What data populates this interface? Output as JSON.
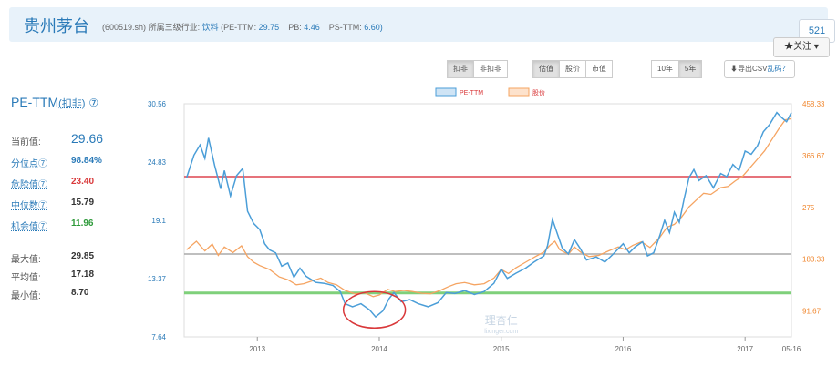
{
  "header": {
    "title": "贵州茅台",
    "code": "(600519.sh)",
    "industry_label": "所属三级行业:",
    "industry_value": "饮料",
    "pe_label": "(PE-TTM:",
    "pe_value": "29.75",
    "pb_label": "PB:",
    "pb_value": "4.46",
    "ps_label": "PS-TTM:",
    "ps_value": "6.60)",
    "count": "521",
    "follow_label": "★关注 ▾"
  },
  "toolbar": {
    "deduct_group": [
      "扣非",
      "非扣非"
    ],
    "deduct_active": 0,
    "view_group": [
      "估值",
      "股价",
      "市值"
    ],
    "view_active": 0,
    "range_group": [
      "10年",
      "5年"
    ],
    "range_active": 1,
    "export_label": "⬇导出CSV",
    "help_label": "乱码？"
  },
  "stats": {
    "title": "PE-TTM",
    "title_suffix": "(扣非)",
    "help_icon": "⑦",
    "current_label": "当前值:",
    "current_value": "29.66",
    "rows": [
      {
        "label": "分位点⑦",
        "value": "98.84%",
        "color": "#2a7ab8"
      },
      {
        "label": "危险值⑦",
        "value": "23.40",
        "color": "#d9383a"
      },
      {
        "label": "中位数⑦",
        "value": "15.79",
        "color": "#333333"
      },
      {
        "label": "机会值⑦",
        "value": "11.96",
        "color": "#2e9a3a"
      }
    ],
    "max_label": "最大值:",
    "max_value": "29.85",
    "avg_label": "平均值:",
    "avg_value": "17.18",
    "min_label": "最小值:",
    "min_value": "8.70"
  },
  "chart_data": {
    "type": "line",
    "legend": [
      "PE-TTM",
      "股价"
    ],
    "x_ticks": [
      "2013",
      "2014",
      "2015",
      "2016",
      "2017",
      "05-16"
    ],
    "y_left_ticks": [
      "30.56",
      "24.83",
      "19.1",
      "13.37",
      "7.64"
    ],
    "y_right_ticks": [
      "458.33",
      "366.67",
      "275",
      "183.33",
      "91.67"
    ],
    "ylim_left": [
      7.64,
      30.56
    ],
    "ylim_right": [
      45.83,
      458.33
    ],
    "x_range": [
      2012.4,
      2017.38
    ],
    "reference_lines": {
      "danger": 23.4,
      "median": 15.79,
      "opportunity": 11.96
    },
    "colors": {
      "pe": "#4b9ed8",
      "price": "#f5a462",
      "danger": "#e6737b",
      "median": "#aaaaaa",
      "opportunity": "#7fd07a",
      "circle": "#d9383a"
    },
    "watermark": "理杏仁 lixinger.com",
    "pe_series": [
      [
        2012.42,
        23.3
      ],
      [
        2012.48,
        25.5
      ],
      [
        2012.53,
        26.5
      ],
      [
        2012.57,
        25.2
      ],
      [
        2012.6,
        27.2
      ],
      [
        2012.65,
        24.5
      ],
      [
        2012.7,
        22.2
      ],
      [
        2012.73,
        24.0
      ],
      [
        2012.78,
        21.5
      ],
      [
        2012.83,
        23.5
      ],
      [
        2012.88,
        24.2
      ],
      [
        2012.92,
        20.0
      ],
      [
        2012.97,
        18.8
      ],
      [
        2013.02,
        18.2
      ],
      [
        2013.06,
        16.8
      ],
      [
        2013.1,
        16.2
      ],
      [
        2013.15,
        15.9
      ],
      [
        2013.2,
        14.6
      ],
      [
        2013.25,
        14.9
      ],
      [
        2013.3,
        13.5
      ],
      [
        2013.35,
        14.4
      ],
      [
        2013.4,
        13.6
      ],
      [
        2013.48,
        13.0
      ],
      [
        2013.55,
        12.9
      ],
      [
        2013.62,
        12.7
      ],
      [
        2013.68,
        12.1
      ],
      [
        2013.72,
        10.9
      ],
      [
        2013.78,
        10.6
      ],
      [
        2013.85,
        10.9
      ],
      [
        2013.92,
        10.3
      ],
      [
        2013.97,
        9.6
      ],
      [
        2014.03,
        10.2
      ],
      [
        2014.08,
        11.4
      ],
      [
        2014.12,
        12.0
      ],
      [
        2014.18,
        11.1
      ],
      [
        2014.25,
        11.3
      ],
      [
        2014.32,
        10.9
      ],
      [
        2014.4,
        10.6
      ],
      [
        2014.48,
        11.0
      ],
      [
        2014.55,
        12.0
      ],
      [
        2014.62,
        11.9
      ],
      [
        2014.7,
        12.2
      ],
      [
        2014.78,
        11.8
      ],
      [
        2014.86,
        12.1
      ],
      [
        2014.94,
        12.9
      ],
      [
        2015.0,
        14.3
      ],
      [
        2015.05,
        13.4
      ],
      [
        2015.12,
        13.9
      ],
      [
        2015.2,
        14.4
      ],
      [
        2015.27,
        15.0
      ],
      [
        2015.35,
        15.6
      ],
      [
        2015.38,
        16.6
      ],
      [
        2015.42,
        19.2
      ],
      [
        2015.46,
        17.8
      ],
      [
        2015.5,
        16.4
      ],
      [
        2015.55,
        15.8
      ],
      [
        2015.6,
        17.2
      ],
      [
        2015.65,
        16.3
      ],
      [
        2015.7,
        15.2
      ],
      [
        2015.78,
        15.5
      ],
      [
        2015.85,
        15.0
      ],
      [
        2015.92,
        15.8
      ],
      [
        2016.0,
        16.8
      ],
      [
        2016.05,
        15.9
      ],
      [
        2016.1,
        16.5
      ],
      [
        2016.16,
        17.0
      ],
      [
        2016.2,
        15.6
      ],
      [
        2016.25,
        15.9
      ],
      [
        2016.3,
        17.6
      ],
      [
        2016.34,
        19.1
      ],
      [
        2016.38,
        17.9
      ],
      [
        2016.42,
        19.9
      ],
      [
        2016.46,
        18.9
      ],
      [
        2016.5,
        21.2
      ],
      [
        2016.54,
        23.3
      ],
      [
        2016.58,
        24.1
      ],
      [
        2016.62,
        23.0
      ],
      [
        2016.68,
        23.5
      ],
      [
        2016.74,
        22.3
      ],
      [
        2016.8,
        23.7
      ],
      [
        2016.85,
        23.4
      ],
      [
        2016.9,
        24.6
      ],
      [
        2016.95,
        24.0
      ],
      [
        2017.0,
        25.9
      ],
      [
        2017.05,
        25.6
      ],
      [
        2017.1,
        26.4
      ],
      [
        2017.15,
        27.8
      ],
      [
        2017.2,
        28.5
      ],
      [
        2017.26,
        29.7
      ],
      [
        2017.3,
        29.2
      ],
      [
        2017.34,
        28.8
      ],
      [
        2017.38,
        29.7
      ]
    ],
    "price_series": [
      [
        2012.42,
        200
      ],
      [
        2012.5,
        215
      ],
      [
        2012.57,
        198
      ],
      [
        2012.63,
        210
      ],
      [
        2012.68,
        190
      ],
      [
        2012.73,
        205
      ],
      [
        2012.8,
        195
      ],
      [
        2012.87,
        207
      ],
      [
        2012.92,
        188
      ],
      [
        2012.97,
        178
      ],
      [
        2013.02,
        172
      ],
      [
        2013.1,
        165
      ],
      [
        2013.18,
        152
      ],
      [
        2013.25,
        147
      ],
      [
        2013.32,
        138
      ],
      [
        2013.38,
        140
      ],
      [
        2013.45,
        145
      ],
      [
        2013.52,
        150
      ],
      [
        2013.58,
        142
      ],
      [
        2013.65,
        138
      ],
      [
        2013.72,
        128
      ],
      [
        2013.8,
        122
      ],
      [
        2013.88,
        124
      ],
      [
        2013.95,
        117
      ],
      [
        2014.0,
        120
      ],
      [
        2014.07,
        130
      ],
      [
        2014.13,
        126
      ],
      [
        2014.2,
        128
      ],
      [
        2014.27,
        126
      ],
      [
        2014.35,
        123
      ],
      [
        2014.42,
        122
      ],
      [
        2014.5,
        128
      ],
      [
        2014.57,
        135
      ],
      [
        2014.63,
        140
      ],
      [
        2014.7,
        142
      ],
      [
        2014.78,
        138
      ],
      [
        2014.86,
        140
      ],
      [
        2014.94,
        150
      ],
      [
        2015.0,
        165
      ],
      [
        2015.06,
        158
      ],
      [
        2015.12,
        168
      ],
      [
        2015.2,
        178
      ],
      [
        2015.28,
        188
      ],
      [
        2015.35,
        196
      ],
      [
        2015.4,
        208
      ],
      [
        2015.44,
        215
      ],
      [
        2015.48,
        200
      ],
      [
        2015.55,
        192
      ],
      [
        2015.6,
        205
      ],
      [
        2015.65,
        196
      ],
      [
        2015.72,
        188
      ],
      [
        2015.8,
        190
      ],
      [
        2015.88,
        198
      ],
      [
        2015.96,
        205
      ],
      [
        2016.02,
        200
      ],
      [
        2016.08,
        208
      ],
      [
        2016.15,
        214
      ],
      [
        2016.22,
        204
      ],
      [
        2016.3,
        222
      ],
      [
        2016.36,
        240
      ],
      [
        2016.42,
        245
      ],
      [
        2016.48,
        258
      ],
      [
        2016.54,
        276
      ],
      [
        2016.6,
        288
      ],
      [
        2016.66,
        300
      ],
      [
        2016.72,
        298
      ],
      [
        2016.8,
        310
      ],
      [
        2016.86,
        312
      ],
      [
        2016.92,
        322
      ],
      [
        2016.98,
        330
      ],
      [
        2017.04,
        345
      ],
      [
        2017.1,
        360
      ],
      [
        2017.16,
        375
      ],
      [
        2017.22,
        395
      ],
      [
        2017.28,
        415
      ],
      [
        2017.33,
        430
      ],
      [
        2017.38,
        432
      ]
    ]
  }
}
